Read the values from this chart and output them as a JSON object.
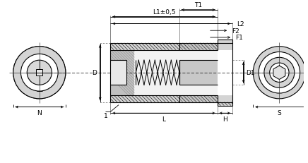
{
  "bg_color": "#ffffff",
  "line_color": "#000000",
  "labels": {
    "F1": "F1",
    "F2": "F2",
    "L1": "L1±0,5",
    "L2": "L2",
    "T1": "T1",
    "D": "D",
    "D1": "D1",
    "L": "L",
    "H": "H",
    "N": "N",
    "S": "S",
    "num1": "1"
  },
  "font_size": 6.5
}
